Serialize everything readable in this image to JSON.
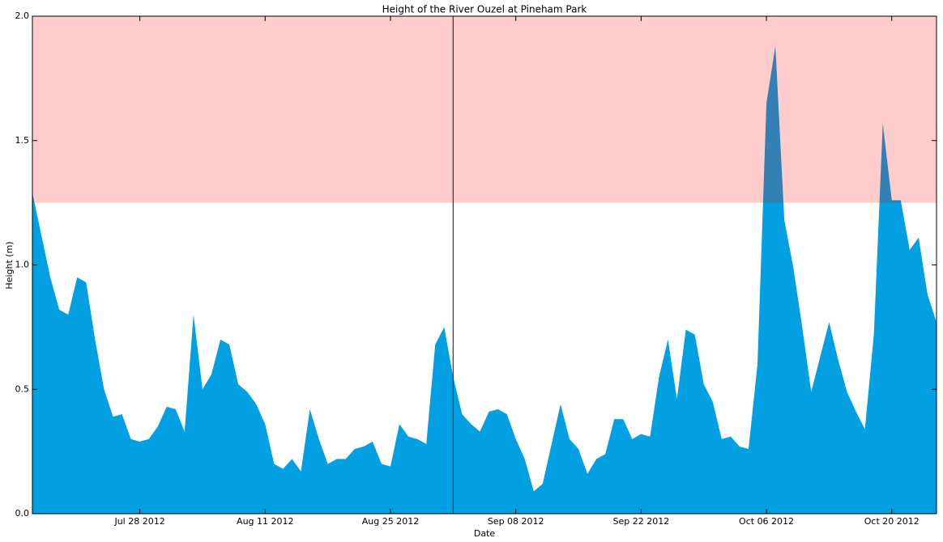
{
  "chart_data": {
    "type": "area",
    "title": "Height of the River Ouzel at Pineham Park",
    "xlabel": "Date",
    "ylabel": "Height (m)",
    "x": [
      "2012-07-16",
      "2012-07-17",
      "2012-07-18",
      "2012-07-19",
      "2012-07-20",
      "2012-07-21",
      "2012-07-22",
      "2012-07-23",
      "2012-07-24",
      "2012-07-25",
      "2012-07-26",
      "2012-07-27",
      "2012-07-28",
      "2012-07-29",
      "2012-07-30",
      "2012-07-31",
      "2012-08-01",
      "2012-08-02",
      "2012-08-03",
      "2012-08-04",
      "2012-08-05",
      "2012-08-06",
      "2012-08-07",
      "2012-08-08",
      "2012-08-09",
      "2012-08-10",
      "2012-08-11",
      "2012-08-12",
      "2012-08-13",
      "2012-08-14",
      "2012-08-15",
      "2012-08-16",
      "2012-08-17",
      "2012-08-18",
      "2012-08-19",
      "2012-08-20",
      "2012-08-21",
      "2012-08-22",
      "2012-08-23",
      "2012-08-24",
      "2012-08-25",
      "2012-08-26",
      "2012-08-27",
      "2012-08-28",
      "2012-08-29",
      "2012-08-30",
      "2012-08-31",
      "2012-09-01",
      "2012-09-02",
      "2012-09-03",
      "2012-09-04",
      "2012-09-05",
      "2012-09-06",
      "2012-09-07",
      "2012-09-08",
      "2012-09-09",
      "2012-09-10",
      "2012-09-11",
      "2012-09-12",
      "2012-09-13",
      "2012-09-14",
      "2012-09-15",
      "2012-09-16",
      "2012-09-17",
      "2012-09-18",
      "2012-09-19",
      "2012-09-20",
      "2012-09-21",
      "2012-09-22",
      "2012-09-23",
      "2012-09-24",
      "2012-09-25",
      "2012-09-26",
      "2012-09-27",
      "2012-09-28",
      "2012-09-29",
      "2012-09-30",
      "2012-10-01",
      "2012-10-02",
      "2012-10-03",
      "2012-10-04",
      "2012-10-05",
      "2012-10-06",
      "2012-10-07",
      "2012-10-08",
      "2012-10-09",
      "2012-10-10",
      "2012-10-11",
      "2012-10-12",
      "2012-10-13",
      "2012-10-14",
      "2012-10-15",
      "2012-10-16",
      "2012-10-17",
      "2012-10-18",
      "2012-10-19",
      "2012-10-20",
      "2012-10-21",
      "2012-10-22",
      "2012-10-23",
      "2012-10-24",
      "2012-10-25"
    ],
    "values": [
      1.29,
      1.12,
      0.95,
      0.82,
      0.8,
      0.95,
      0.93,
      0.7,
      0.5,
      0.39,
      0.4,
      0.3,
      0.29,
      0.3,
      0.35,
      0.43,
      0.42,
      0.33,
      0.8,
      0.5,
      0.56,
      0.7,
      0.68,
      0.52,
      0.49,
      0.44,
      0.36,
      0.2,
      0.18,
      0.22,
      0.17,
      0.42,
      0.3,
      0.2,
      0.22,
      0.22,
      0.26,
      0.27,
      0.29,
      0.2,
      0.19,
      0.36,
      0.31,
      0.3,
      0.28,
      0.68,
      0.75,
      0.55,
      0.4,
      0.36,
      0.33,
      0.41,
      0.42,
      0.4,
      0.3,
      0.22,
      0.09,
      0.12,
      0.28,
      0.44,
      0.3,
      0.26,
      0.16,
      0.22,
      0.24,
      0.38,
      0.38,
      0.3,
      0.32,
      0.31,
      0.55,
      0.7,
      0.46,
      0.74,
      0.72,
      0.52,
      0.45,
      0.3,
      0.31,
      0.27,
      0.26,
      0.6,
      1.65,
      1.88,
      1.18,
      0.99,
      0.75,
      0.49,
      0.63,
      0.77,
      0.62,
      0.49,
      0.41,
      0.34,
      0.72,
      1.57,
      1.26,
      1.26,
      1.06,
      1.11,
      0.88,
      0.77
    ],
    "color": "#00a0e2",
    "xlim": [
      "2012-07-16",
      "2012-10-25"
    ],
    "xticks": [
      {
        "value": "2012-07-28",
        "label": "Jul 28 2012"
      },
      {
        "value": "2012-08-11",
        "label": "Aug 11 2012"
      },
      {
        "value": "2012-08-25",
        "label": "Aug 25 2012"
      },
      {
        "value": "2012-09-08",
        "label": "Sep 08 2012"
      },
      {
        "value": "2012-09-22",
        "label": "Sep 22 2012"
      },
      {
        "value": "2012-10-06",
        "label": "Oct 06 2012"
      },
      {
        "value": "2012-10-20",
        "label": "Oct 20 2012"
      }
    ],
    "ylim": [
      0,
      2
    ],
    "yticks": [
      {
        "value": 0,
        "label": "0.0"
      },
      0.5,
      {
        "value": 1,
        "label": "1.0"
      },
      1.5,
      {
        "value": 2,
        "label": "2.0"
      }
    ],
    "band": {
      "from": 1.25,
      "to": 2,
      "color": "#ff0000"
    },
    "vline": "2012-09-01"
  }
}
